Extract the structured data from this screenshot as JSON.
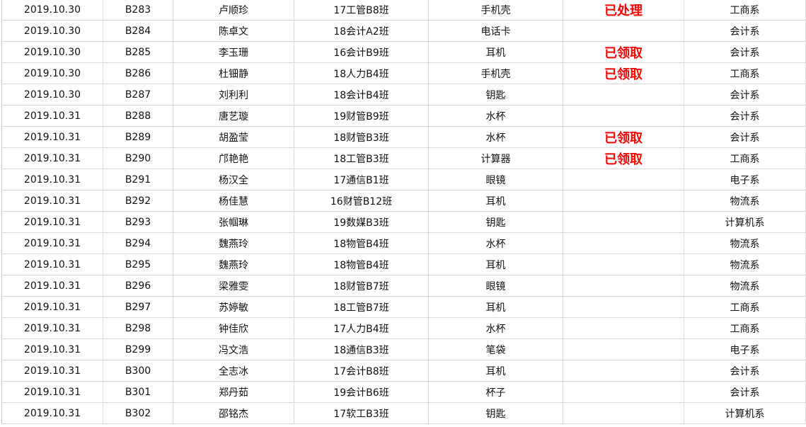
{
  "colors": {
    "status_text": "#ff0000",
    "grid": "#d9d9d9"
  },
  "rows": [
    [
      "2019.10.30",
      "B283",
      "卢顺珍",
      "17工管B8班",
      "手机壳",
      "已处理",
      "工商系"
    ],
    [
      "2019.10.30",
      "B284",
      "陈卓文",
      "18会计A2班",
      "电话卡",
      "",
      "会计系"
    ],
    [
      "2019.10.30",
      "B285",
      "李玉珊",
      "16会计B9班",
      "耳机",
      "已领取",
      "会计系"
    ],
    [
      "2019.10.30",
      "B286",
      "杜钿静",
      "18人力B4班",
      "手机壳",
      "已领取",
      "工商系"
    ],
    [
      "2019.10.30",
      "B287",
      "刘利利",
      "18会计B4班",
      "钥匙",
      "",
      "会计系"
    ],
    [
      "2019.10.31",
      "B288",
      "唐艺璇",
      "19财管B9班",
      "水杯",
      "",
      "会计系"
    ],
    [
      "2019.10.31",
      "B289",
      "胡盈莹",
      "18财管B3班",
      "水杯",
      "已领取",
      "会计系"
    ],
    [
      "2019.10.31",
      "B290",
      "邝艳艳",
      "18工管B3班",
      "计算器",
      "已领取",
      "工商系"
    ],
    [
      "2019.10.31",
      "B291",
      "杨汉全",
      "17通信B1班",
      "眼镜",
      "",
      "电子系"
    ],
    [
      "2019.10.31",
      "B292",
      "杨佳慧",
      "16财管B12班",
      "耳机",
      "",
      "物流系"
    ],
    [
      "2019.10.31",
      "B293",
      "张帼琳",
      "19数媒B3班",
      "钥匙",
      "",
      "计算机系"
    ],
    [
      "2019.10.31",
      "B294",
      "魏燕玲",
      "18物管B4班",
      "水杯",
      "",
      "物流系"
    ],
    [
      "2019.10.31",
      "B295",
      "魏燕玲",
      "18物管B4班",
      "耳机",
      "",
      "物流系"
    ],
    [
      "2019.10.31",
      "B296",
      "梁雅雯",
      "18财管B7班",
      "眼镜",
      "",
      "物流系"
    ],
    [
      "2019.10.31",
      "B297",
      "苏婷敏",
      "18工管B7班",
      "耳机",
      "",
      "工商系"
    ],
    [
      "2019.10.31",
      "B298",
      "钟佳欣",
      "17人力B4班",
      "水杯",
      "",
      "工商系"
    ],
    [
      "2019.10.31",
      "B299",
      "冯文浩",
      "18通信B3班",
      "笔袋",
      "",
      "电子系"
    ],
    [
      "2019.10.31",
      "B300",
      "全志冰",
      "17会计B8班",
      "耳机",
      "",
      "会计系"
    ],
    [
      "2019.10.31",
      "B301",
      "郑丹茹",
      "19会计B6班",
      "杯子",
      "",
      "会计系"
    ],
    [
      "2019.10.31",
      "B302",
      "邵铭杰",
      "17软工B3班",
      "钥匙",
      "",
      "计算机系"
    ]
  ]
}
